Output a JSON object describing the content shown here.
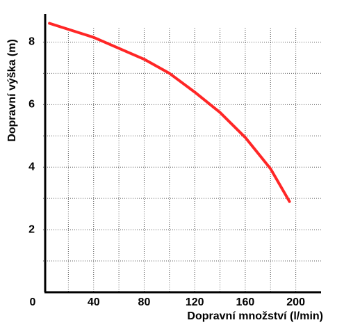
{
  "chart_data": {
    "type": "line",
    "x_label": "Dopravní množství (l/min)",
    "y_label": "Dopravní výška (m)",
    "x": [
      5,
      40,
      80,
      100,
      120,
      140,
      160,
      180,
      195
    ],
    "series": [
      {
        "color": "#ff2626",
        "values": [
          8.6,
          8.15,
          7.45,
          7.0,
          6.4,
          5.75,
          4.95,
          3.95,
          2.9
        ]
      }
    ],
    "xlim": [
      0,
      220
    ],
    "ylim": [
      0,
      8.9
    ],
    "xticks": [
      0,
      40,
      80,
      120,
      160,
      200
    ],
    "yticks": [
      2,
      4,
      6,
      8
    ],
    "grid": true
  }
}
